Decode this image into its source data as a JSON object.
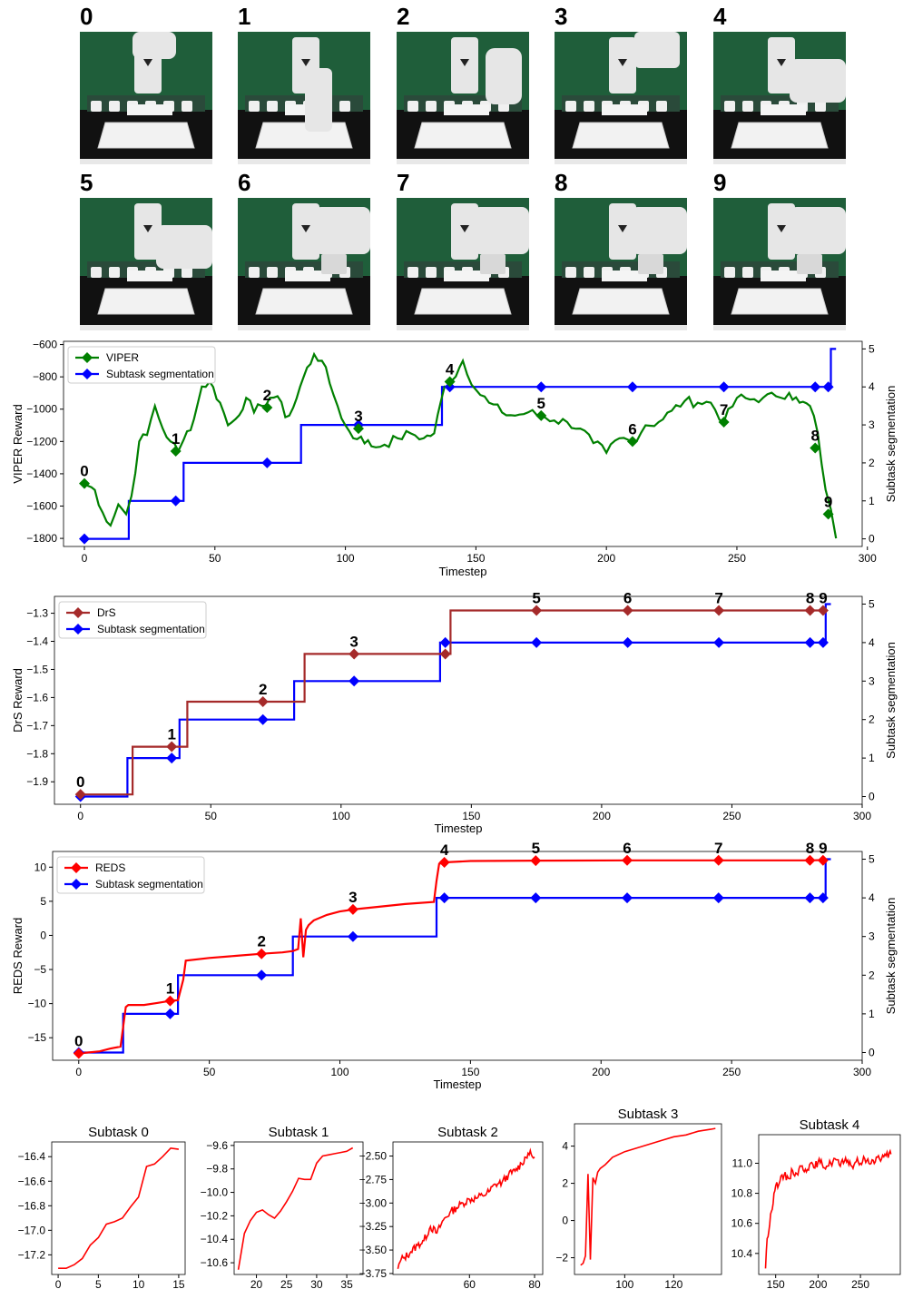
{
  "frames": [
    {
      "label": "0",
      "gripper": "up"
    },
    {
      "label": "1",
      "gripper": "down"
    },
    {
      "label": "2",
      "gripper": "side"
    },
    {
      "label": "3",
      "gripper": "far"
    },
    {
      "label": "4",
      "gripper": "near"
    },
    {
      "label": "5",
      "gripper": "near"
    },
    {
      "label": "6",
      "gripper": "grasp"
    },
    {
      "label": "7",
      "gripper": "grasp"
    },
    {
      "label": "8",
      "gripper": "grasp"
    },
    {
      "label": "9",
      "gripper": "grasp"
    }
  ],
  "colors": {
    "viper": "#008000",
    "drs": "#a52a2a",
    "reds": "#ff0000",
    "segmentation": "#0000ff",
    "scene_bg": "#1f5e3a",
    "table": "#111111",
    "robot": "#e6e6e6"
  },
  "chart_data": [
    {
      "id": "viper",
      "type": "line",
      "ylabel": "VIPER Reward",
      "xlabel": "Timestep",
      "y2label": "Subtask segmentation",
      "xlim": [
        -8,
        298
      ],
      "ylim": [
        -1850,
        -580
      ],
      "y2lim": [
        -0.2,
        5.2
      ],
      "xticks": [
        0,
        50,
        100,
        150,
        200,
        250,
        300
      ],
      "yticks": [
        -1800,
        -1600,
        -1400,
        -1200,
        -1000,
        -800,
        -600
      ],
      "y2ticks": [
        0,
        1,
        2,
        3,
        4,
        5
      ],
      "legend": [
        "VIPER",
        "Subtask segmentation"
      ],
      "legend_position": "upper-left",
      "reward_series": {
        "name": "VIPER",
        "noisy": true,
        "x": [
          0,
          4,
          7,
          10,
          13,
          16,
          18,
          21,
          24,
          27,
          30,
          33,
          36,
          38,
          42,
          45,
          48,
          52,
          55,
          58,
          62,
          65,
          68,
          71,
          74,
          77,
          80,
          84,
          88,
          91,
          94,
          97,
          100,
          103,
          106,
          110,
          115,
          120,
          125,
          130,
          134,
          138,
          141,
          145,
          150,
          155,
          160,
          165,
          170,
          175,
          180,
          185,
          190,
          195,
          200,
          205,
          210,
          215,
          220,
          225,
          230,
          235,
          240,
          245,
          250,
          255,
          260,
          265,
          270,
          274,
          278,
          281,
          284,
          286,
          288
        ],
        "y": [
          -1460,
          -1500,
          -1640,
          -1720,
          -1590,
          -1650,
          -1540,
          -1200,
          -1160,
          -980,
          -1120,
          -1200,
          -1260,
          -1190,
          -1060,
          -860,
          -830,
          -960,
          -1100,
          -1060,
          -930,
          -1020,
          -980,
          -930,
          -920,
          -1050,
          -990,
          -800,
          -660,
          -700,
          -840,
          -980,
          -1100,
          -1180,
          -1170,
          -1230,
          -1220,
          -1180,
          -1150,
          -1180,
          -1150,
          -860,
          -820,
          -700,
          -880,
          -960,
          -1020,
          -1040,
          -1020,
          -1040,
          -1070,
          -1080,
          -1120,
          -1210,
          -1270,
          -1180,
          -1200,
          -1100,
          -1080,
          -1010,
          -950,
          -960,
          -960,
          -1080,
          -930,
          -940,
          -930,
          -920,
          -900,
          -960,
          -980,
          -1150,
          -1500,
          -1620,
          -1800
        ]
      },
      "segmentation": {
        "name": "Subtask segmentation",
        "x": [
          0,
          17,
          17,
          38,
          38,
          83,
          83,
          137,
          137,
          286,
          286,
          288
        ],
        "y": [
          0,
          0,
          1,
          1,
          2,
          2,
          3,
          3,
          4,
          4,
          5,
          5
        ]
      },
      "reward_markers": [
        {
          "label": "0",
          "x": 0,
          "y": -1460
        },
        {
          "label": "1",
          "x": 35,
          "y": -1260
        },
        {
          "label": "2",
          "x": 70,
          "y": -990
        },
        {
          "label": "3",
          "x": 105,
          "y": -1120
        },
        {
          "label": "4",
          "x": 140,
          "y": -830
        },
        {
          "label": "5",
          "x": 175,
          "y": -1040
        },
        {
          "label": "6",
          "x": 210,
          "y": -1200
        },
        {
          "label": "7",
          "x": 245,
          "y": -1080
        },
        {
          "label": "8",
          "x": 280,
          "y": -1240
        },
        {
          "label": "9",
          "x": 285,
          "y": -1650
        }
      ],
      "segmentation_markers": [
        {
          "x": 0,
          "y": 0
        },
        {
          "x": 35,
          "y": 1
        },
        {
          "x": 70,
          "y": 2
        },
        {
          "x": 105,
          "y": 3
        },
        {
          "x": 140,
          "y": 4
        },
        {
          "x": 175,
          "y": 4
        },
        {
          "x": 210,
          "y": 4
        },
        {
          "x": 245,
          "y": 4
        },
        {
          "x": 280,
          "y": 4
        },
        {
          "x": 285,
          "y": 4
        }
      ]
    },
    {
      "id": "drs",
      "type": "line",
      "ylabel": "DrS Reward",
      "xlabel": "Timestep",
      "y2label": "Subtask segmentation",
      "xlim": [
        -10,
        300
      ],
      "ylim": [
        -1.98,
        -1.24
      ],
      "y2lim": [
        -0.2,
        5.2
      ],
      "xticks": [
        0,
        50,
        100,
        150,
        200,
        250,
        300
      ],
      "yticks": [
        -1.9,
        -1.8,
        -1.7,
        -1.6,
        -1.5,
        -1.4,
        -1.3
      ],
      "ytick_labels": [
        "-1.9",
        "-1.8",
        "-1.7",
        "-1.6",
        "-1.5",
        "-1.4",
        "-1.3"
      ],
      "y2ticks": [
        0,
        1,
        2,
        3,
        4,
        5
      ],
      "legend": [
        "DrS",
        "Subtask segmentation"
      ],
      "legend_position": "upper-left",
      "reward_series": {
        "name": "DrS",
        "noisy": false,
        "x": [
          0,
          20,
          20,
          41,
          41,
          86,
          86,
          142,
          142,
          286
        ],
        "y": [
          -1.945,
          -1.945,
          -1.775,
          -1.775,
          -1.615,
          -1.615,
          -1.445,
          -1.445,
          -1.29,
          -1.29
        ]
      },
      "segmentation": {
        "name": "Subtask segmentation",
        "x": [
          0,
          18,
          18,
          38,
          38,
          82,
          82,
          138,
          138,
          286,
          286,
          288
        ],
        "y": [
          0,
          0,
          1,
          1,
          2,
          2,
          3,
          3,
          4,
          4,
          5,
          5
        ]
      },
      "reward_markers": [
        {
          "label": "0",
          "x": 0,
          "y": -1.945
        },
        {
          "label": "1",
          "x": 35,
          "y": -1.775
        },
        {
          "label": "2",
          "x": 70,
          "y": -1.615
        },
        {
          "label": "3",
          "x": 105,
          "y": -1.445
        },
        {
          "label": "",
          "x": 140,
          "y": -1.445
        },
        {
          "label": "5",
          "x": 175,
          "y": -1.29
        },
        {
          "label": "6",
          "x": 210,
          "y": -1.29
        },
        {
          "label": "7",
          "x": 245,
          "y": -1.29
        },
        {
          "label": "8",
          "x": 280,
          "y": -1.29
        },
        {
          "label": "9",
          "x": 285,
          "y": -1.29
        }
      ],
      "segmentation_markers": [
        {
          "x": 0,
          "y": 0
        },
        {
          "x": 35,
          "y": 1
        },
        {
          "x": 70,
          "y": 2
        },
        {
          "x": 105,
          "y": 3
        },
        {
          "x": 140,
          "y": 4
        },
        {
          "x": 175,
          "y": 4
        },
        {
          "x": 210,
          "y": 4
        },
        {
          "x": 245,
          "y": 4
        },
        {
          "x": 280,
          "y": 4
        },
        {
          "x": 285,
          "y": 4
        }
      ]
    },
    {
      "id": "reds",
      "type": "line",
      "ylabel": "REDS Reward",
      "xlabel": "Timestep",
      "y2label": "Subtask segmentation",
      "xlim": [
        -10,
        300
      ],
      "ylim": [
        -18.3,
        12.3
      ],
      "y2lim": [
        -0.2,
        5.2
      ],
      "xticks": [
        0,
        50,
        100,
        150,
        200,
        250,
        300
      ],
      "yticks": [
        -15,
        -10,
        -5,
        0,
        5,
        10
      ],
      "y2ticks": [
        0,
        1,
        2,
        3,
        4,
        5
      ],
      "legend": [
        "REDS",
        "Subtask segmentation"
      ],
      "legend_position": "upper-left",
      "reward_series": {
        "name": "REDS",
        "noisy": false,
        "x": [
          0,
          8,
          12,
          16,
          18,
          19,
          25,
          30,
          35,
          38,
          40,
          41,
          50,
          60,
          70,
          78,
          82,
          84,
          85,
          86,
          87,
          88,
          90,
          95,
          100,
          105,
          115,
          125,
          136,
          137,
          138,
          140,
          150,
          175,
          210,
          245,
          280,
          286
        ],
        "y": [
          -17.3,
          -17.0,
          -16.6,
          -16.3,
          -10.5,
          -10.2,
          -10.2,
          -9.9,
          -9.6,
          -9.5,
          -6.5,
          -3.7,
          -3.3,
          -3.0,
          -2.7,
          -2.5,
          -2.3,
          -2.0,
          2.5,
          -3.2,
          0.8,
          1.5,
          2.2,
          3.0,
          3.5,
          3.8,
          4.2,
          4.6,
          4.9,
          8.0,
          10.5,
          10.7,
          10.9,
          10.95,
          11.0,
          11.0,
          11.0,
          11.05
        ]
      },
      "segmentation": {
        "name": "Subtask segmentation",
        "x": [
          0,
          17,
          17,
          38,
          38,
          82,
          82,
          137,
          137,
          286,
          286,
          288
        ],
        "y": [
          0,
          0,
          1,
          1,
          2,
          2,
          3,
          3,
          4,
          4,
          5,
          5
        ]
      },
      "reward_markers": [
        {
          "label": "0",
          "x": 0,
          "y": -17.3
        },
        {
          "label": "1",
          "x": 35,
          "y": -9.6
        },
        {
          "label": "2",
          "x": 70,
          "y": -2.7
        },
        {
          "label": "3",
          "x": 105,
          "y": 3.8
        },
        {
          "label": "4",
          "x": 140,
          "y": 10.7
        },
        {
          "label": "5",
          "x": 175,
          "y": 10.95
        },
        {
          "label": "6",
          "x": 210,
          "y": 11.0
        },
        {
          "label": "7",
          "x": 245,
          "y": 11.0
        },
        {
          "label": "8",
          "x": 280,
          "y": 11.0
        },
        {
          "label": "9",
          "x": 285,
          "y": 11.0
        }
      ],
      "segmentation_markers": [
        {
          "x": 0,
          "y": 0
        },
        {
          "x": 35,
          "y": 1
        },
        {
          "x": 70,
          "y": 2
        },
        {
          "x": 105,
          "y": 3
        },
        {
          "x": 140,
          "y": 4
        },
        {
          "x": 175,
          "y": 4
        },
        {
          "x": 210,
          "y": 4
        },
        {
          "x": 245,
          "y": 4
        },
        {
          "x": 280,
          "y": 4
        },
        {
          "x": 285,
          "y": 4
        }
      ]
    },
    {
      "id": "sub0",
      "type": "line",
      "title": "Subtask 0",
      "xlim": [
        -0.8,
        15.8
      ],
      "ylim": [
        -17.36,
        -16.28
      ],
      "xticks": [
        0,
        5,
        10,
        15
      ],
      "yticks": [
        -17.2,
        -17.0,
        -16.8,
        -16.6,
        -16.4
      ],
      "ytick_labels": [
        "-17.2",
        "-17.0",
        "-16.8",
        "-16.6",
        "-16.4"
      ],
      "series": {
        "x": [
          0,
          1,
          2,
          3,
          4,
          5,
          6,
          7,
          8,
          9,
          10,
          11,
          12,
          13,
          14,
          15
        ],
        "y": [
          -17.31,
          -17.31,
          -17.28,
          -17.23,
          -17.12,
          -17.06,
          -16.95,
          -16.93,
          -16.9,
          -16.81,
          -16.73,
          -16.48,
          -16.46,
          -16.4,
          -16.33,
          -16.34
        ]
      }
    },
    {
      "id": "sub1",
      "type": "line",
      "title": "Subtask 1",
      "xlim": [
        16.3,
        37.7
      ],
      "ylim": [
        -10.7,
        -9.57
      ],
      "xticks": [
        20,
        25,
        30,
        35
      ],
      "yticks": [
        -10.6,
        -10.4,
        -10.2,
        -10.0,
        -9.8,
        -9.6
      ],
      "ytick_labels": [
        "-10.6",
        "-10.4",
        "-10.2",
        "-10.0",
        "-9.8",
        "-9.6"
      ],
      "series": {
        "x": [
          17,
          18,
          19,
          20,
          21,
          22,
          23,
          24,
          25,
          26,
          27,
          28,
          29,
          30,
          31,
          32,
          33,
          34,
          35,
          36
        ],
        "y": [
          -10.66,
          -10.35,
          -10.24,
          -10.17,
          -10.15,
          -10.19,
          -10.22,
          -10.16,
          -10.08,
          -9.99,
          -9.88,
          -9.89,
          -9.89,
          -9.75,
          -9.69,
          -9.68,
          -9.67,
          -9.66,
          -9.65,
          -9.62
        ]
      }
    },
    {
      "id": "sub2",
      "type": "line",
      "title": "Subtask 2",
      "xlim": [
        36.5,
        82.5
      ],
      "ylim": [
        -3.76,
        -2.35
      ],
      "xticks": [
        60,
        80
      ],
      "yticks": [
        -3.75,
        -3.5,
        -3.25,
        -3.0,
        -2.75,
        -2.5
      ],
      "ytick_labels": [
        "-3.75",
        "-3.50",
        "-3.25",
        "-3.00",
        "-2.75",
        "-2.50"
      ],
      "series": {
        "noisy": true,
        "x": [
          38,
          39,
          40,
          42,
          44,
          46,
          48,
          50,
          52,
          54,
          56,
          58,
          60,
          62,
          64,
          66,
          68,
          70,
          72,
          74,
          76,
          78,
          80
        ],
        "y": [
          -3.7,
          -3.6,
          -3.58,
          -3.52,
          -3.45,
          -3.4,
          -3.25,
          -3.32,
          -3.18,
          -3.1,
          -3.05,
          -3.0,
          -2.96,
          -2.95,
          -2.92,
          -2.88,
          -2.8,
          -2.78,
          -2.7,
          -2.66,
          -2.58,
          -2.47,
          -2.51
        ]
      }
    },
    {
      "id": "sub3",
      "type": "line",
      "title": "Subtask 3",
      "xlim": [
        79.5,
        139.5
      ],
      "ylim": [
        -2.9,
        5.2
      ],
      "xticks": [
        100,
        120
      ],
      "yticks": [
        -2,
        0,
        2,
        4
      ],
      "series": {
        "x": [
          82,
          83,
          84,
          85,
          86,
          87,
          88,
          89,
          90,
          92,
          95,
          100,
          105,
          110,
          115,
          120,
          125,
          130,
          135,
          137
        ],
        "y": [
          -2.4,
          -2.3,
          -1.9,
          2.5,
          -2.1,
          2.3,
          2.0,
          2.6,
          2.8,
          3.0,
          3.4,
          3.7,
          3.9,
          4.1,
          4.3,
          4.5,
          4.6,
          4.8,
          4.9,
          4.95
        ]
      }
    },
    {
      "id": "sub4",
      "type": "line",
      "title": "Subtask 4",
      "xlim": [
        130,
        297
      ],
      "ylim": [
        10.26,
        11.19
      ],
      "xticks": [
        150,
        200,
        250
      ],
      "yticks": [
        10.4,
        10.6,
        10.8,
        11.0
      ],
      "ytick_labels": [
        "10.4",
        "10.6",
        "10.8",
        "11.0"
      ],
      "series": {
        "noisy": true,
        "x": [
          138,
          140,
          142,
          145,
          148,
          150,
          155,
          160,
          165,
          170,
          175,
          180,
          185,
          190,
          195,
          200,
          205,
          210,
          215,
          220,
          225,
          230,
          235,
          240,
          245,
          250,
          255,
          260,
          265,
          270,
          275,
          280,
          284,
          286
        ],
        "y": [
          10.3,
          10.5,
          10.55,
          10.68,
          10.8,
          10.85,
          10.88,
          10.92,
          10.9,
          10.95,
          10.93,
          10.98,
          10.96,
          10.99,
          10.97,
          11.01,
          10.99,
          10.98,
          11.0,
          11.03,
          10.99,
          11.0,
          11.02,
          10.98,
          11.01,
          11.0,
          11.03,
          11.0,
          11.02,
          11.04,
          11.03,
          11.05,
          11.07,
          11.06
        ]
      }
    }
  ]
}
